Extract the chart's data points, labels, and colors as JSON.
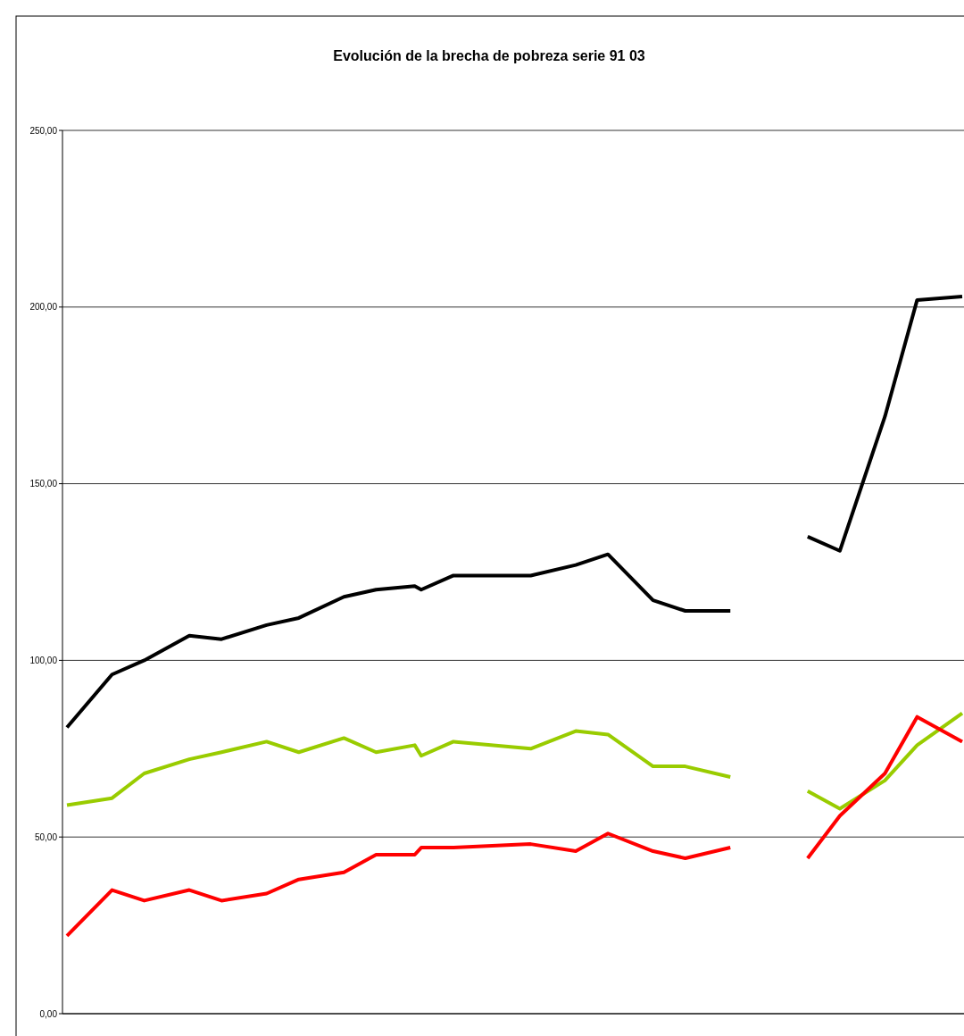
{
  "chart_data": {
    "type": "line",
    "title": "Evolución de la brecha de pobreza serie 91 03",
    "categories": [
      null,
      null,
      null,
      null,
      null,
      null,
      null,
      null,
      null,
      null,
      null,
      null,
      null,
      null,
      null,
      null,
      null,
      null,
      null,
      null,
      null,
      null,
      null,
      null,
      null,
      null,
      null,
      null,
      null,
      null,
      null,
      null,
      null,
      null,
      null,
      null,
      null,
      null,
      null,
      null,
      null,
      null,
      null,
      null,
      null,
      null,
      null,
      null,
      null,
      null,
      null,
      null,
      null,
      null,
      null,
      null,
      null,
      null,
      null,
      null,
      null,
      null,
      null,
      null,
      null,
      null,
      null,
      null,
      null,
      null,
      null,
      null,
      null,
      null,
      null,
      null,
      null,
      null,
      null,
      null,
      null,
      null,
      null,
      null,
      null,
      null,
      null,
      null,
      null,
      null,
      null,
      null,
      null,
      null,
      null,
      null,
      null,
      null,
      null,
      null,
      null,
      null,
      null,
      null,
      null,
      null,
      null,
      null,
      null,
      null,
      null,
      null,
      null,
      null,
      null,
      null,
      null,
      null,
      null,
      null,
      null,
      null,
      null,
      null,
      null,
      null,
      null,
      null,
      null,
      null,
      null,
      null,
      null,
      null,
      null,
      null,
      null,
      null,
      null,
      null
    ],
    "series": [
      {
        "color": "#000000",
        "values": [
          81,
          null,
          null,
          null,
          null,
          null,
          null,
          96,
          null,
          null,
          null,
          null,
          100,
          null,
          null,
          null,
          null,
          null,
          null,
          107,
          null,
          null,
          null,
          null,
          106,
          null,
          null,
          null,
          null,
          null,
          null,
          110,
          null,
          null,
          null,
          null,
          112,
          null,
          null,
          null,
          null,
          null,
          null,
          118,
          null,
          null,
          null,
          null,
          120,
          null,
          null,
          null,
          null,
          null,
          121,
          120,
          null,
          null,
          null,
          null,
          124,
          null,
          null,
          null,
          null,
          null,
          null,
          null,
          null,
          null,
          null,
          null,
          124,
          null,
          null,
          null,
          null,
          null,
          null,
          127,
          null,
          null,
          null,
          null,
          130,
          null,
          null,
          null,
          null,
          null,
          null,
          117,
          null,
          null,
          null,
          null,
          114,
          null,
          null,
          null,
          null,
          null,
          null,
          114,
          null,
          null,
          null,
          null,
          null,
          null,
          null,
          null,
          null,
          null,
          null,
          null,
          null,
          null,
          null,
          null,
          null,
          null,
          null,
          null,
          null,
          null,
          null,
          null,
          null,
          null,
          null,
          null,
          null,
          null,
          null,
          null,
          null,
          null,
          null,
          null
        ]
      },
      {
        "color": "#99cc00",
        "values": [
          59,
          null,
          null,
          null,
          null,
          null,
          null,
          61,
          null,
          null,
          null,
          null,
          68,
          null,
          null,
          null,
          null,
          null,
          null,
          72,
          null,
          null,
          null,
          null,
          74,
          null,
          null,
          null,
          null,
          null,
          null,
          77,
          null,
          null,
          null,
          null,
          74,
          null,
          null,
          null,
          null,
          null,
          null,
          78,
          null,
          null,
          null,
          null,
          74,
          null,
          null,
          null,
          null,
          null,
          76,
          73,
          null,
          null,
          null,
          null,
          77,
          null,
          null,
          null,
          null,
          null,
          null,
          null,
          null,
          null,
          null,
          null,
          75,
          null,
          null,
          null,
          null,
          null,
          null,
          80,
          null,
          null,
          null,
          null,
          79,
          null,
          null,
          null,
          null,
          null,
          null,
          70,
          null,
          null,
          null,
          null,
          70,
          null,
          null,
          null,
          null,
          null,
          null,
          67,
          null,
          null,
          null,
          null,
          null,
          null,
          null,
          null,
          null,
          null,
          null,
          null,
          null,
          null,
          null,
          null,
          null,
          null,
          null,
          null,
          null,
          null,
          null,
          null,
          null,
          null,
          null,
          null,
          null,
          null,
          null,
          null,
          null,
          null,
          null,
          null
        ]
      },
      {
        "color": "#ff0000",
        "values": [
          22,
          null,
          null,
          null,
          null,
          null,
          null,
          35,
          null,
          null,
          null,
          null,
          32,
          null,
          null,
          null,
          null,
          null,
          null,
          35,
          null,
          null,
          null,
          null,
          32,
          null,
          null,
          null,
          null,
          null,
          null,
          34,
          null,
          null,
          null,
          null,
          38,
          null,
          null,
          null,
          null,
          null,
          null,
          40,
          null,
          null,
          null,
          null,
          45,
          null,
          null,
          null,
          null,
          null,
          45,
          47,
          null,
          null,
          null,
          null,
          47,
          null,
          null,
          null,
          null,
          null,
          null,
          null,
          null,
          null,
          null,
          null,
          48,
          null,
          null,
          null,
          null,
          null,
          null,
          46,
          null,
          null,
          null,
          null,
          51,
          null,
          null,
          null,
          null,
          null,
          null,
          46,
          null,
          null,
          null,
          null,
          44,
          null,
          null,
          null,
          null,
          null,
          null,
          47,
          null,
          null,
          null,
          null,
          null,
          null,
          null,
          null,
          null,
          null,
          null,
          null,
          null,
          null,
          null,
          null,
          null,
          null,
          null,
          null,
          null,
          null,
          null,
          null,
          null,
          null,
          null,
          null,
          null,
          null,
          null,
          null,
          null,
          null,
          null,
          null
        ]
      },
      {
        "color": "#000000",
        "values": [
          null,
          null,
          null,
          null,
          null,
          null,
          null,
          null,
          null,
          null,
          null,
          null,
          null,
          null,
          null,
          null,
          null,
          null,
          null,
          null,
          null,
          null,
          null,
          null,
          null,
          null,
          null,
          null,
          null,
          null,
          null,
          null,
          null,
          null,
          null,
          null,
          null,
          null,
          null,
          null,
          null,
          null,
          null,
          null,
          null,
          null,
          null,
          null,
          null,
          null,
          null,
          null,
          null,
          null,
          null,
          null,
          null,
          null,
          null,
          null,
          null,
          null,
          null,
          null,
          null,
          null,
          null,
          null,
          null,
          null,
          null,
          null,
          null,
          null,
          null,
          null,
          null,
          null,
          null,
          null,
          null,
          null,
          null,
          null,
          null,
          null,
          null,
          null,
          null,
          null,
          null,
          null,
          null,
          null,
          null,
          null,
          null,
          null,
          null,
          null,
          null,
          null,
          null,
          null,
          null,
          null,
          null,
          null,
          null,
          null,
          null,
          null,
          null,
          null,
          null,
          135,
          null,
          null,
          null,
          null,
          131,
          null,
          null,
          null,
          null,
          null,
          null,
          169,
          null,
          null,
          null,
          null,
          202,
          null,
          null,
          null,
          null,
          null,
          null,
          203
        ]
      },
      {
        "color": "#99cc00",
        "values": [
          null,
          null,
          null,
          null,
          null,
          null,
          null,
          null,
          null,
          null,
          null,
          null,
          null,
          null,
          null,
          null,
          null,
          null,
          null,
          null,
          null,
          null,
          null,
          null,
          null,
          null,
          null,
          null,
          null,
          null,
          null,
          null,
          null,
          null,
          null,
          null,
          null,
          null,
          null,
          null,
          null,
          null,
          null,
          null,
          null,
          null,
          null,
          null,
          null,
          null,
          null,
          null,
          null,
          null,
          null,
          null,
          null,
          null,
          null,
          null,
          null,
          null,
          null,
          null,
          null,
          null,
          null,
          null,
          null,
          null,
          null,
          null,
          null,
          null,
          null,
          null,
          null,
          null,
          null,
          null,
          null,
          null,
          null,
          null,
          null,
          null,
          null,
          null,
          null,
          null,
          null,
          null,
          null,
          null,
          null,
          null,
          null,
          null,
          null,
          null,
          null,
          null,
          null,
          null,
          null,
          null,
          null,
          null,
          null,
          null,
          null,
          null,
          null,
          null,
          null,
          63,
          null,
          null,
          null,
          null,
          58,
          null,
          null,
          null,
          null,
          null,
          null,
          66,
          null,
          null,
          null,
          null,
          76,
          null,
          null,
          null,
          null,
          null,
          null,
          85
        ]
      },
      {
        "color": "#ff0000",
        "values": [
          null,
          null,
          null,
          null,
          null,
          null,
          null,
          null,
          null,
          null,
          null,
          null,
          null,
          null,
          null,
          null,
          null,
          null,
          null,
          null,
          null,
          null,
          null,
          null,
          null,
          null,
          null,
          null,
          null,
          null,
          null,
          null,
          null,
          null,
          null,
          null,
          null,
          null,
          null,
          null,
          null,
          null,
          null,
          null,
          null,
          null,
          null,
          null,
          null,
          null,
          null,
          null,
          null,
          null,
          null,
          null,
          null,
          null,
          null,
          null,
          null,
          null,
          null,
          null,
          null,
          null,
          null,
          null,
          null,
          null,
          null,
          null,
          null,
          null,
          null,
          null,
          null,
          null,
          null,
          null,
          null,
          null,
          null,
          null,
          null,
          null,
          null,
          null,
          null,
          null,
          null,
          null,
          null,
          null,
          null,
          null,
          null,
          null,
          null,
          null,
          null,
          null,
          null,
          null,
          null,
          null,
          null,
          null,
          null,
          null,
          null,
          null,
          null,
          null,
          null,
          44,
          null,
          null,
          null,
          null,
          56,
          null,
          null,
          null,
          null,
          null,
          null,
          68,
          null,
          null,
          null,
          null,
          84,
          null,
          null,
          null,
          null,
          null,
          null,
          77
        ]
      }
    ],
    "ylim": [
      0,
      250
    ],
    "yticks": [
      {
        "value": 0,
        "label": "0,00"
      },
      {
        "value": 50,
        "label": "50,00"
      },
      {
        "value": 100,
        "label": "100,00"
      },
      {
        "value": 150,
        "label": "150,00"
      },
      {
        "value": 200,
        "label": "200,00"
      },
      {
        "value": 250,
        "label": "250,00"
      }
    ],
    "grid": "y",
    "line_style": "solid",
    "marker": "none"
  }
}
